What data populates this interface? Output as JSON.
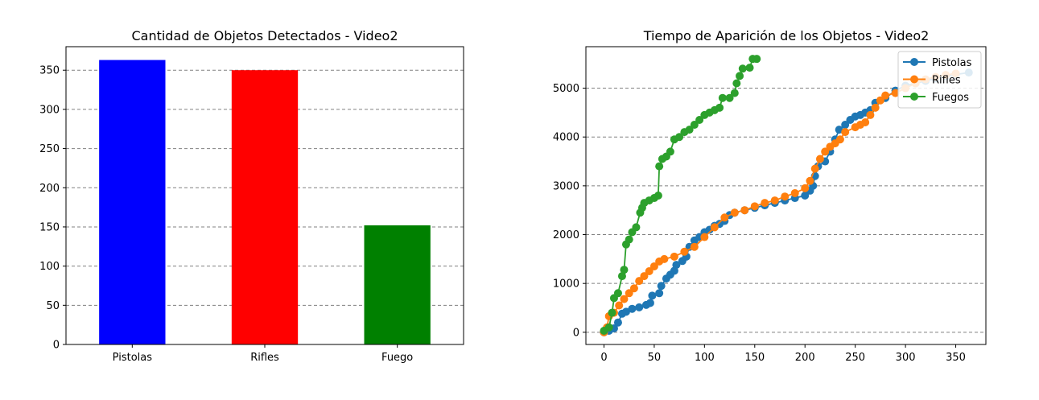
{
  "chart_data": [
    {
      "type": "bar",
      "title": "Cantidad de Objetos Detectados - Video2",
      "xlabel": "",
      "ylabel": "",
      "categories": [
        "Pistolas",
        "Rifles",
        "Fuego"
      ],
      "values": [
        363,
        350,
        152
      ],
      "colors": [
        "#0000ff",
        "#ff0000",
        "#008000"
      ],
      "ylim": [
        0,
        380
      ],
      "yticks": [
        0,
        50,
        100,
        150,
        200,
        250,
        300,
        350
      ],
      "grid": "y-dashed"
    },
    {
      "type": "line",
      "title": "Tiempo de Aparición de los Objetos - Video2",
      "xlabel": "",
      "ylabel": "",
      "xlim": [
        -18,
        380
      ],
      "ylim": [
        -250,
        5850
      ],
      "xticks": [
        0,
        50,
        100,
        150,
        200,
        250,
        300,
        350
      ],
      "yticks": [
        0,
        1000,
        2000,
        3000,
        4000,
        5000
      ],
      "grid": "y-dashed",
      "legend_position": "top-right",
      "series": [
        {
          "name": "Pistolas",
          "color": "#1f77b4",
          "points": [
            [
              0,
              0
            ],
            [
              5,
              30
            ],
            [
              10,
              80
            ],
            [
              14,
              200
            ],
            [
              18,
              380
            ],
            [
              22,
              420
            ],
            [
              28,
              480
            ],
            [
              35,
              510
            ],
            [
              42,
              560
            ],
            [
              46,
              600
            ],
            [
              48,
              750
            ],
            [
              55,
              800
            ],
            [
              57,
              950
            ],
            [
              62,
              1100
            ],
            [
              66,
              1180
            ],
            [
              70,
              1260
            ],
            [
              72,
              1380
            ],
            [
              78,
              1460
            ],
            [
              82,
              1550
            ],
            [
              85,
              1750
            ],
            [
              90,
              1880
            ],
            [
              95,
              1950
            ],
            [
              100,
              2050
            ],
            [
              105,
              2100
            ],
            [
              110,
              2180
            ],
            [
              115,
              2220
            ],
            [
              120,
              2280
            ],
            [
              125,
              2400
            ],
            [
              130,
              2450
            ],
            [
              140,
              2500
            ],
            [
              150,
              2550
            ],
            [
              160,
              2600
            ],
            [
              170,
              2650
            ],
            [
              180,
              2700
            ],
            [
              190,
              2750
            ],
            [
              200,
              2800
            ],
            [
              205,
              2900
            ],
            [
              208,
              3000
            ],
            [
              210,
              3200
            ],
            [
              213,
              3400
            ],
            [
              220,
              3500
            ],
            [
              225,
              3700
            ],
            [
              230,
              3950
            ],
            [
              234,
              4150
            ],
            [
              240,
              4250
            ],
            [
              245,
              4350
            ],
            [
              250,
              4420
            ],
            [
              255,
              4450
            ],
            [
              260,
              4500
            ],
            [
              265,
              4550
            ],
            [
              270,
              4700
            ],
            [
              280,
              4800
            ],
            [
              290,
              4950
            ],
            [
              300,
              5050
            ],
            [
              310,
              5100
            ],
            [
              320,
              5150
            ],
            [
              330,
              5200
            ],
            [
              340,
              5250
            ],
            [
              350,
              5280
            ],
            [
              363,
              5320
            ]
          ]
        },
        {
          "name": "Rifles",
          "color": "#ff7f0e",
          "points": [
            [
              0,
              0
            ],
            [
              3,
              100
            ],
            [
              5,
              330
            ],
            [
              10,
              400
            ],
            [
              15,
              550
            ],
            [
              20,
              680
            ],
            [
              25,
              800
            ],
            [
              30,
              900
            ],
            [
              35,
              1050
            ],
            [
              40,
              1150
            ],
            [
              45,
              1250
            ],
            [
              50,
              1350
            ],
            [
              55,
              1450
            ],
            [
              60,
              1500
            ],
            [
              70,
              1550
            ],
            [
              80,
              1650
            ],
            [
              90,
              1750
            ],
            [
              100,
              1950
            ],
            [
              110,
              2150
            ],
            [
              120,
              2350
            ],
            [
              130,
              2450
            ],
            [
              140,
              2500
            ],
            [
              150,
              2580
            ],
            [
              160,
              2650
            ],
            [
              170,
              2700
            ],
            [
              180,
              2780
            ],
            [
              190,
              2850
            ],
            [
              200,
              2950
            ],
            [
              205,
              3100
            ],
            [
              210,
              3350
            ],
            [
              215,
              3550
            ],
            [
              220,
              3700
            ],
            [
              225,
              3800
            ],
            [
              230,
              3870
            ],
            [
              235,
              3950
            ],
            [
              240,
              4100
            ],
            [
              250,
              4200
            ],
            [
              255,
              4250
            ],
            [
              260,
              4300
            ],
            [
              265,
              4450
            ],
            [
              270,
              4600
            ],
            [
              275,
              4750
            ],
            [
              280,
              4850
            ],
            [
              290,
              4900
            ],
            [
              300,
              5000
            ],
            [
              310,
              5100
            ],
            [
              320,
              5180
            ],
            [
              330,
              5230
            ],
            [
              340,
              5270
            ],
            [
              350,
              5300
            ]
          ]
        },
        {
          "name": "Fuegos",
          "color": "#2ca02c",
          "points": [
            [
              0,
              30
            ],
            [
              5,
              100
            ],
            [
              8,
              400
            ],
            [
              10,
              700
            ],
            [
              14,
              800
            ],
            [
              18,
              1150
            ],
            [
              20,
              1280
            ],
            [
              22,
              1800
            ],
            [
              25,
              1900
            ],
            [
              28,
              2050
            ],
            [
              32,
              2150
            ],
            [
              36,
              2450
            ],
            [
              38,
              2550
            ],
            [
              40,
              2650
            ],
            [
              45,
              2700
            ],
            [
              50,
              2750
            ],
            [
              54,
              2800
            ],
            [
              55,
              3400
            ],
            [
              58,
              3550
            ],
            [
              62,
              3600
            ],
            [
              66,
              3700
            ],
            [
              70,
              3950
            ],
            [
              75,
              4000
            ],
            [
              80,
              4100
            ],
            [
              85,
              4150
            ],
            [
              90,
              4250
            ],
            [
              95,
              4350
            ],
            [
              100,
              4450
            ],
            [
              105,
              4500
            ],
            [
              110,
              4550
            ],
            [
              115,
              4600
            ],
            [
              118,
              4800
            ],
            [
              125,
              4800
            ],
            [
              130,
              4900
            ],
            [
              132,
              5100
            ],
            [
              135,
              5250
            ],
            [
              138,
              5400
            ],
            [
              145,
              5420
            ],
            [
              148,
              5600
            ],
            [
              152,
              5600
            ]
          ]
        }
      ]
    }
  ]
}
